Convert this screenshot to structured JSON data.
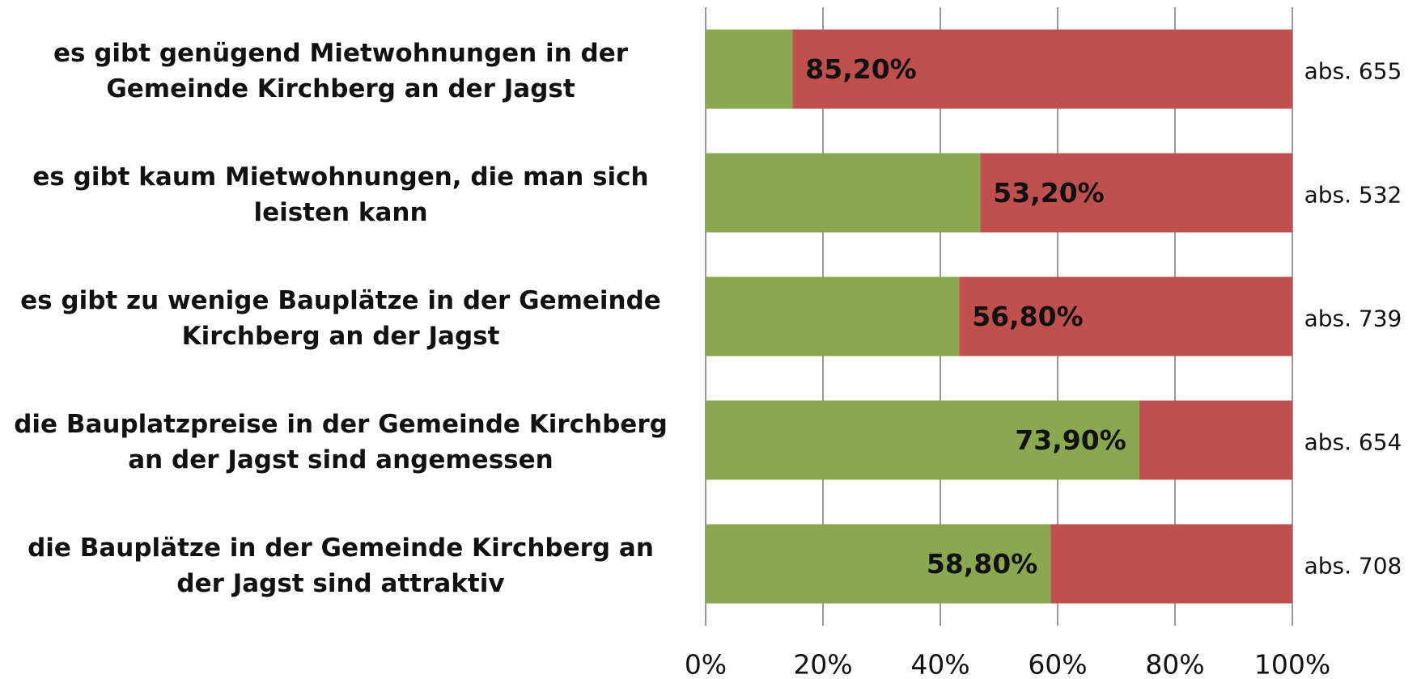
{
  "chart_data": {
    "type": "stacked_barh",
    "categories": [
      "es gibt genügend Mietwohnungen in der Gemeinde Kirchberg an der Jagst",
      "es gibt kaum Mietwohnungen, die man sich leisten kann",
      "es gibt zu wenige Bauplätze in der Gemeinde Kirchberg an der Jagst",
      "die Bauplatzpreise in der Gemeinde Kirchberg an der Jagst sind angemessen",
      "die Bauplätze in der Gemeinde Kirchberg an der Jagst sind attraktiv"
    ],
    "series": [
      {
        "color": "#8aa84f",
        "values": [
          14.8,
          46.8,
          43.2,
          73.9,
          58.8
        ],
        "value_labels": [
          null,
          null,
          null,
          "73,90%",
          "58,80%"
        ]
      },
      {
        "color": "#c0504d",
        "values": [
          85.2,
          53.2,
          56.8,
          26.1,
          41.2
        ],
        "value_labels": [
          "85,20%",
          "53,20%",
          "56,80%",
          null,
          null
        ]
      }
    ],
    "annotations": [
      "abs. 655",
      "abs. 532",
      "abs. 739",
      "abs. 654",
      "abs. 708"
    ],
    "xlim": [
      0,
      100
    ],
    "xticks": [
      {
        "value": 0,
        "label": "0%"
      },
      {
        "value": 20,
        "label": "20%"
      },
      {
        "value": 40,
        "label": "40%"
      },
      {
        "value": 60,
        "label": "60%"
      },
      {
        "value": 80,
        "label": "80%"
      },
      {
        "value": 100,
        "label": "100%"
      }
    ],
    "grid": true
  }
}
